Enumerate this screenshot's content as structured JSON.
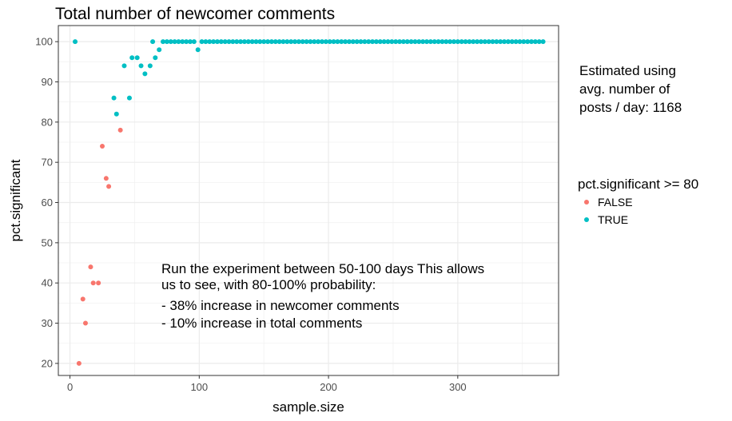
{
  "chart_data": {
    "type": "scatter",
    "title": "Total number of newcomer comments",
    "xlabel": "sample.size",
    "ylabel": "pct.significant",
    "xlim": [
      -9,
      378
    ],
    "ylim": [
      17,
      104
    ],
    "x_ticks": [
      0,
      100,
      200,
      300
    ],
    "y_ticks": [
      20,
      30,
      40,
      50,
      60,
      70,
      80,
      90,
      100
    ],
    "grid": true,
    "colors": {
      "FALSE": "#F8766D",
      "TRUE": "#00BFC4"
    },
    "legend": {
      "title": "pct.significant >= 80",
      "position": "right",
      "entries": [
        "FALSE",
        "TRUE"
      ]
    },
    "side_note": [
      "Estimated using",
      "avg. number of",
      "posts / day: 1168"
    ],
    "annotation": [
      "Run the experiment between 50-100 days This allows",
      "us to see, with 80-100% probability:",
      "- 38% increase in newcomer comments",
      "- 10% increase in total comments"
    ],
    "series": [
      {
        "name": "FALSE",
        "points": [
          [
            7,
            20
          ],
          [
            10,
            36
          ],
          [
            12,
            30
          ],
          [
            16,
            44
          ],
          [
            18,
            40
          ],
          [
            22,
            40
          ],
          [
            25,
            74
          ],
          [
            28,
            66
          ],
          [
            30,
            64
          ],
          [
            39,
            78
          ]
        ]
      },
      {
        "name": "TRUE",
        "points": [
          [
            4,
            100
          ],
          [
            34,
            86
          ],
          [
            36,
            82
          ],
          [
            42,
            94
          ],
          [
            46,
            86
          ],
          [
            48,
            96
          ],
          [
            52,
            96
          ],
          [
            55,
            94
          ],
          [
            58,
            92
          ],
          [
            62,
            94
          ],
          [
            64,
            100
          ],
          [
            66,
            96
          ],
          [
            69,
            98
          ],
          [
            72,
            100
          ],
          [
            75,
            100
          ],
          [
            78,
            100
          ],
          [
            81,
            100
          ],
          [
            84,
            100
          ],
          [
            87,
            100
          ],
          [
            90,
            100
          ],
          [
            93,
            100
          ],
          [
            96,
            100
          ],
          [
            99,
            98
          ],
          [
            102,
            100
          ],
          [
            105,
            100
          ],
          [
            108,
            100
          ],
          [
            111,
            100
          ],
          [
            114,
            100
          ],
          [
            117,
            100
          ],
          [
            120,
            100
          ],
          [
            123,
            100
          ],
          [
            126,
            100
          ],
          [
            129,
            100
          ],
          [
            132,
            100
          ],
          [
            135,
            100
          ],
          [
            138,
            100
          ],
          [
            141,
            100
          ],
          [
            144,
            100
          ],
          [
            147,
            100
          ],
          [
            150,
            100
          ],
          [
            153,
            100
          ],
          [
            156,
            100
          ],
          [
            159,
            100
          ],
          [
            162,
            100
          ],
          [
            165,
            100
          ],
          [
            168,
            100
          ],
          [
            171,
            100
          ],
          [
            174,
            100
          ],
          [
            177,
            100
          ],
          [
            180,
            100
          ],
          [
            183,
            100
          ],
          [
            186,
            100
          ],
          [
            189,
            100
          ],
          [
            192,
            100
          ],
          [
            195,
            100
          ],
          [
            198,
            100
          ],
          [
            201,
            100
          ],
          [
            204,
            100
          ],
          [
            207,
            100
          ],
          [
            210,
            100
          ],
          [
            213,
            100
          ],
          [
            216,
            100
          ],
          [
            219,
            100
          ],
          [
            222,
            100
          ],
          [
            225,
            100
          ],
          [
            228,
            100
          ],
          [
            231,
            100
          ],
          [
            234,
            100
          ],
          [
            237,
            100
          ],
          [
            240,
            100
          ],
          [
            243,
            100
          ],
          [
            246,
            100
          ],
          [
            249,
            100
          ],
          [
            252,
            100
          ],
          [
            255,
            100
          ],
          [
            258,
            100
          ],
          [
            261,
            100
          ],
          [
            264,
            100
          ],
          [
            267,
            100
          ],
          [
            270,
            100
          ],
          [
            273,
            100
          ],
          [
            276,
            100
          ],
          [
            279,
            100
          ],
          [
            282,
            100
          ],
          [
            285,
            100
          ],
          [
            288,
            100
          ],
          [
            291,
            100
          ],
          [
            294,
            100
          ],
          [
            297,
            100
          ],
          [
            300,
            100
          ],
          [
            303,
            100
          ],
          [
            306,
            100
          ],
          [
            309,
            100
          ],
          [
            312,
            100
          ],
          [
            315,
            100
          ],
          [
            318,
            100
          ],
          [
            321,
            100
          ],
          [
            324,
            100
          ],
          [
            327,
            100
          ],
          [
            330,
            100
          ],
          [
            333,
            100
          ],
          [
            336,
            100
          ],
          [
            339,
            100
          ],
          [
            342,
            100
          ],
          [
            345,
            100
          ],
          [
            348,
            100
          ],
          [
            351,
            100
          ],
          [
            354,
            100
          ],
          [
            357,
            100
          ],
          [
            360,
            100
          ],
          [
            363,
            100
          ],
          [
            366,
            100
          ]
        ]
      }
    ]
  }
}
